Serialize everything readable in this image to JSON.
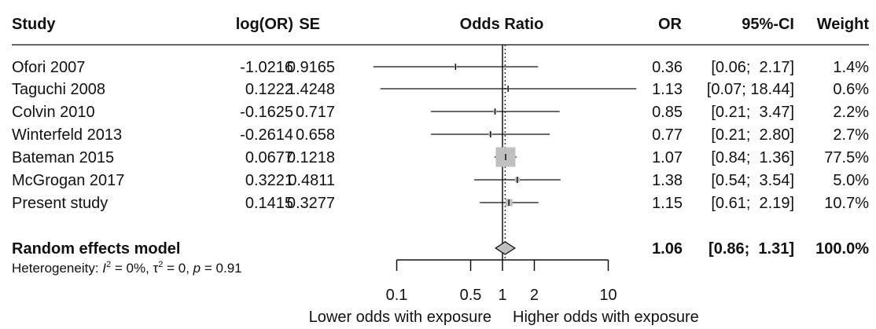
{
  "chart_data": {
    "type": "forest",
    "headers": {
      "study": "Study",
      "logor": "log(OR)",
      "se": "SE",
      "plot": "Odds Ratio",
      "or": "OR",
      "ci": "95%-CI",
      "weight": "Weight"
    },
    "studies": [
      {
        "study": "Ofori 2007",
        "logor": "-1.0216",
        "se": "0.9165",
        "or": 0.36,
        "lo": 0.06,
        "hi": 2.17,
        "or_text": "0.36",
        "ci_text": "[0.06;  2.17]",
        "weight": 1.4,
        "weight_text": "1.4%"
      },
      {
        "study": "Taguchi 2008",
        "logor": "0.1222",
        "se": "1.4248",
        "or": 1.13,
        "lo": 0.07,
        "hi": 18.44,
        "or_text": "1.13",
        "ci_text": "[0.07; 18.44]",
        "weight": 0.6,
        "weight_text": "0.6%"
      },
      {
        "study": "Colvin 2010",
        "logor": "-0.1625",
        "se": "0.717",
        "or": 0.85,
        "lo": 0.21,
        "hi": 3.47,
        "or_text": "0.85",
        "ci_text": "[0.21;  3.47]",
        "weight": 2.2,
        "weight_text": "2.2%"
      },
      {
        "study": "Winterfeld 2013",
        "logor": "-0.2614",
        "se": "0.658",
        "or": 0.77,
        "lo": 0.21,
        "hi": 2.8,
        "or_text": "0.77",
        "ci_text": "[0.21;  2.80]",
        "weight": 2.7,
        "weight_text": "2.7%"
      },
      {
        "study": "Bateman 2015",
        "logor": "0.0677",
        "se": "0.1218",
        "or": 1.07,
        "lo": 0.84,
        "hi": 1.36,
        "or_text": "1.07",
        "ci_text": "[0.84;  1.36]",
        "weight": 77.5,
        "weight_text": "77.5%"
      },
      {
        "study": "McGrogan 2017",
        "logor": "0.3221",
        "se": "0.4811",
        "or": 1.38,
        "lo": 0.54,
        "hi": 3.54,
        "or_text": "1.38",
        "ci_text": "[0.54;  3.54]",
        "weight": 5.0,
        "weight_text": "5.0%"
      },
      {
        "study": "Present study",
        "logor": "0.1415",
        "se": "0.3277",
        "or": 1.15,
        "lo": 0.61,
        "hi": 2.19,
        "or_text": "1.15",
        "ci_text": "[0.61;  2.19]",
        "weight": 10.7,
        "weight_text": "10.7%"
      }
    ],
    "summary": {
      "label": "Random effects model",
      "or": 1.06,
      "lo": 0.86,
      "hi": 1.31,
      "or_text": "1.06",
      "ci_text": "[0.86;  1.31]",
      "weight_text": "100.0%"
    },
    "heterogeneity": {
      "prefix": "Heterogeneity: ",
      "i2_symbol": "I",
      "i2_value": " = 0%, ",
      "tau_symbol": "τ",
      "tau_value": " = 0, ",
      "p_symbol": "p",
      "p_value": " = 0.91",
      "sup": "2"
    },
    "x_axis": {
      "scale": "log",
      "ticks": [
        0.1,
        0.5,
        1,
        2,
        10
      ],
      "tick_labels": [
        "0.1",
        "0.5",
        "1",
        "2",
        "10"
      ],
      "xlim": [
        0.1,
        10
      ],
      "reference": 1
    },
    "axis_labels": {
      "left": "Lower odds with exposure",
      "right": "Higher odds with exposure"
    },
    "colors": {
      "square": "#c0c0c0",
      "diamond": "#c0c0c0",
      "line": "#111111"
    }
  }
}
